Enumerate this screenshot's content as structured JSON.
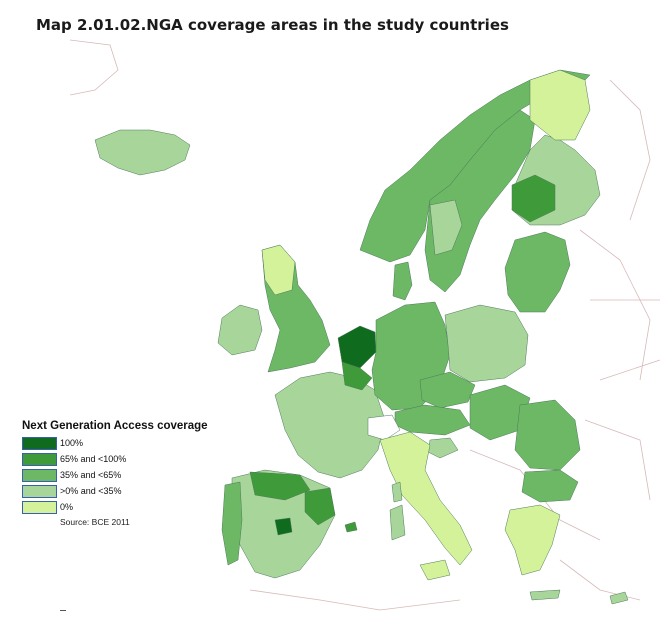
{
  "title": "Map 2.01.02.NGA coverage areas in the study countries",
  "legend": {
    "title": "Next Generation Access coverage",
    "items": [
      {
        "label": "100%",
        "color": "#0f6b1e"
      },
      {
        "label": "65% and <100%",
        "color": "#3f9a3a"
      },
      {
        "label": "35% and <65%",
        "color": "#6cb865"
      },
      {
        "label": ">0% and <35%",
        "color": "#a8d59a"
      },
      {
        "label": "0%",
        "color": "#d4f29a"
      }
    ],
    "source": "Source: BCE 2011"
  },
  "colors": {
    "land_outside": "#ffffff",
    "border_lines": "#c9a8a8",
    "region_edges": "#4d7a5a"
  }
}
